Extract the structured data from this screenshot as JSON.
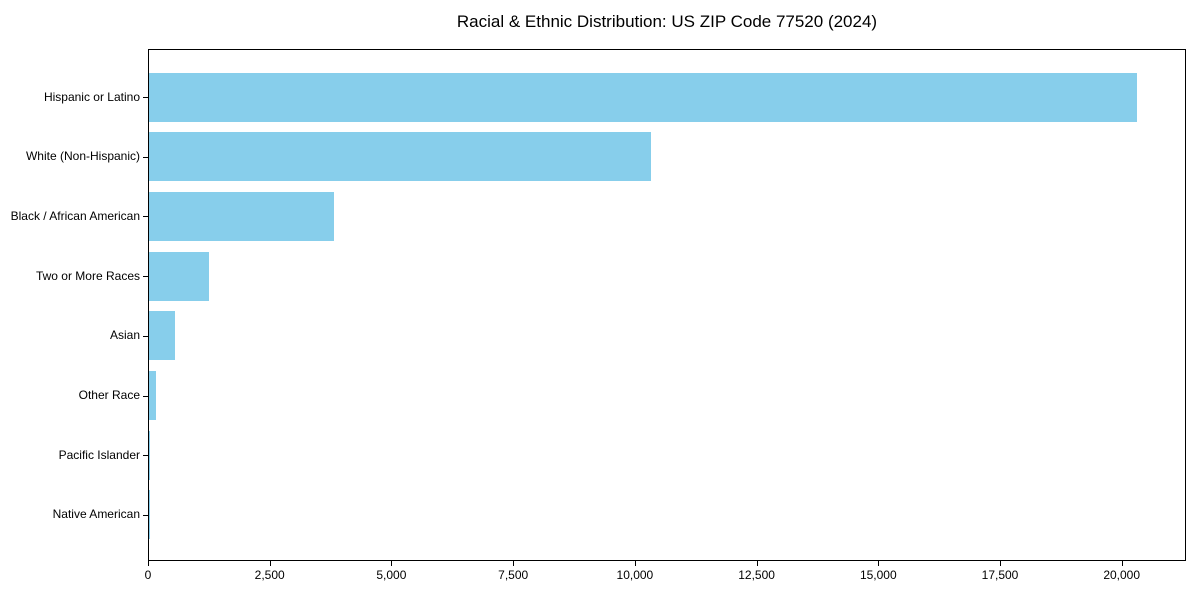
{
  "chart_data": {
    "type": "bar",
    "orientation": "horizontal",
    "title": "Racial & Ethnic Distribution: US ZIP Code 77520 (2024)",
    "categories": [
      "Hispanic or Latino",
      "White (Non-Hispanic)",
      "Black / African American",
      "Two or More Races",
      "Asian",
      "Other Race",
      "Pacific Islander",
      "Native American"
    ],
    "values": [
      20300,
      10300,
      3800,
      1230,
      540,
      140,
      15,
      8
    ],
    "xlabel": "",
    "ylabel": "",
    "xlim": [
      0,
      21320
    ],
    "xticks": [
      {
        "value": 0,
        "label": "0"
      },
      {
        "value": 2500,
        "label": "2,500"
      },
      {
        "value": 5000,
        "label": "5,000"
      },
      {
        "value": 7500,
        "label": "7,500"
      },
      {
        "value": 10000,
        "label": "10,000"
      },
      {
        "value": 12500,
        "label": "12,500"
      },
      {
        "value": 15000,
        "label": "15,000"
      },
      {
        "value": 17500,
        "label": "17,500"
      },
      {
        "value": 20000,
        "label": "20,000"
      }
    ],
    "grid": false,
    "legend": false,
    "bar_color": "#87CEEB",
    "background": "#FFFFFF",
    "axis_color": "#000000"
  }
}
